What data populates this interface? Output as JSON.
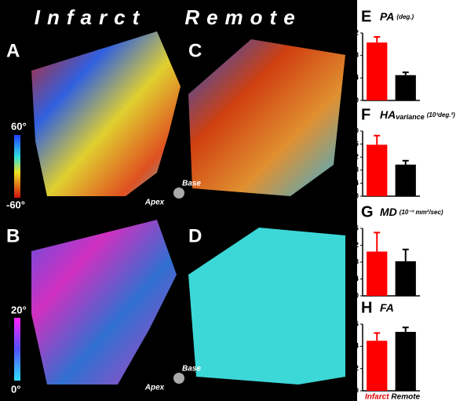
{
  "figure": {
    "column_titles": [
      "Infarct",
      "Remote"
    ],
    "panel_letters": [
      "A",
      "B",
      "C",
      "D"
    ],
    "colorbars": [
      {
        "max": "60°",
        "min": "-60°"
      },
      {
        "max": "20°",
        "min": "0°"
      }
    ],
    "orientation": [
      {
        "base": "Base",
        "apex": "Apex"
      },
      {
        "base": "Base",
        "apex": "Apex"
      }
    ]
  },
  "chart_data": [
    {
      "type": "bar",
      "label": "E",
      "title": "PA",
      "title_unit": "(deg.)",
      "values": [
        10.3,
        4.5
      ],
      "errors": [
        1.0,
        0.5
      ],
      "colors": [
        "#ff0000",
        "#000000"
      ],
      "ylim": [
        0,
        12
      ],
      "yticks": [
        0,
        4,
        8,
        12
      ]
    },
    {
      "type": "bar",
      "label": "F",
      "title": "HA",
      "title_subscript": "variance",
      "title_unit": "(10³deg.²)",
      "values": [
        1.58,
        0.97
      ],
      "errors": [
        0.28,
        0.12
      ],
      "colors": [
        "#ff0000",
        "#000000"
      ],
      "ylim": [
        0,
        2
      ],
      "yticks": [
        0,
        0.4,
        0.8,
        1.2,
        1.6,
        {
          "value": 2,
          "label": "2.0"
        }
      ]
    },
    {
      "type": "bar",
      "label": "G",
      "title": "MD",
      "title_unit": "(10⁻³ mm²/sec)",
      "values": [
        1.05,
        0.82
      ],
      "errors": [
        0.45,
        0.28
      ],
      "colors": [
        "#ff0000",
        "#000000"
      ],
      "ylim": [
        0,
        1.6
      ],
      "yticks": [
        0,
        0.4,
        0.8,
        1.2,
        1.6
      ]
    },
    {
      "type": "bar",
      "label": "H",
      "title": "FA",
      "categories": [
        "Infarct",
        "Remote"
      ],
      "category_colors": [
        "#e00000",
        "#000000"
      ],
      "values": [
        0.45,
        0.53
      ],
      "errors": [
        0.07,
        0.04
      ],
      "colors": [
        "#ff0000",
        "#000000"
      ],
      "ylim": [
        0,
        0.6
      ],
      "yticks": [
        0,
        0.2,
        0.4,
        0.6
      ]
    }
  ]
}
